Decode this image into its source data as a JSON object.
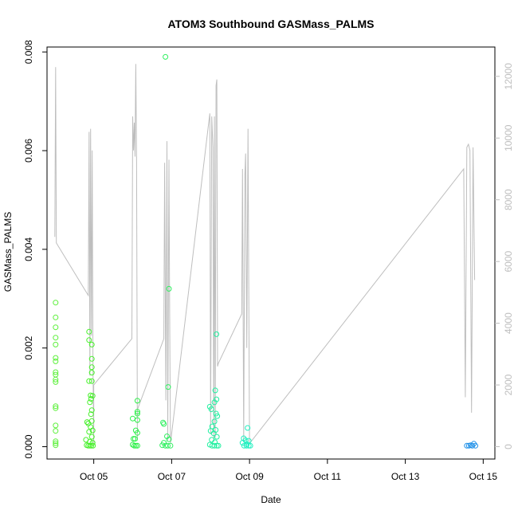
{
  "chart_data": {
    "type": "scatter",
    "title": "ATOM3 Southbound GASMass_PALMS",
    "xlabel": "Date",
    "ylabel": "GASMass_PALMS",
    "x_tick_labels": [
      "Oct 05",
      "Oct 07",
      "Oct 09",
      "Oct 11",
      "Oct 13",
      "Oct 15"
    ],
    "x_tick_days": [
      5,
      7,
      9,
      11,
      13,
      15
    ],
    "xlim_days": [
      3.8,
      15.3
    ],
    "y_left": {
      "ylim": [
        -0.00025,
        0.0081
      ],
      "ticks": [
        0.0,
        0.002,
        0.004,
        0.006,
        0.008
      ],
      "tick_labels": [
        "0.000",
        "0.002",
        "0.004",
        "0.006",
        "0.008"
      ]
    },
    "y_right": {
      "ylim": [
        -400,
        12950
      ],
      "ticks": [
        0,
        2000,
        4000,
        6000,
        8000,
        10000,
        12000
      ],
      "tick_labels": [
        "0",
        "2000",
        "4000",
        "6000",
        "8000",
        "10000",
        "12000"
      ],
      "color": "#bebebe"
    },
    "series": [
      {
        "kind": "points",
        "axis": "left",
        "marker": "open-circle",
        "color_note": "colored by date, green to blue",
        "points": [
          {
            "x": 4.02,
            "y": 0.00292,
            "c": "#5cf03a"
          },
          {
            "x": 4.02,
            "y": 0.00262,
            "c": "#5cf03a"
          },
          {
            "x": 4.02,
            "y": 0.00242,
            "c": "#5cf03a"
          },
          {
            "x": 4.02,
            "y": 0.00221,
            "c": "#5cf03a"
          },
          {
            "x": 4.02,
            "y": 0.00207,
            "c": "#5cf03a"
          },
          {
            "x": 4.02,
            "y": 0.0018,
            "c": "#5cf03a"
          },
          {
            "x": 4.02,
            "y": 0.00173,
            "c": "#5cf03a"
          },
          {
            "x": 4.02,
            "y": 0.00151,
            "c": "#5cf03a"
          },
          {
            "x": 4.02,
            "y": 0.00146,
            "c": "#5cf03a"
          },
          {
            "x": 4.02,
            "y": 0.00136,
            "c": "#5cf03a"
          },
          {
            "x": 4.02,
            "y": 0.00131,
            "c": "#5cf03a"
          },
          {
            "x": 4.02,
            "y": 0.00082,
            "c": "#5cf03a"
          },
          {
            "x": 4.02,
            "y": 0.00078,
            "c": "#5cf03a"
          },
          {
            "x": 4.02,
            "y": 0.00043,
            "c": "#5cf03a"
          },
          {
            "x": 4.02,
            "y": 0.00032,
            "c": "#5cf03a"
          },
          {
            "x": 4.02,
            "y": 0.00011,
            "c": "#5cf03a"
          },
          {
            "x": 4.02,
            "y": 7e-05,
            "c": "#5cf03a"
          },
          {
            "x": 4.02,
            "y": 3e-05,
            "c": "#5cf03a"
          },
          {
            "x": 4.88,
            "y": 0.00233,
            "c": "#46f02a"
          },
          {
            "x": 4.88,
            "y": 0.00216,
            "c": "#46f02a"
          },
          {
            "x": 4.95,
            "y": 0.00207,
            "c": "#46f02a"
          },
          {
            "x": 4.95,
            "y": 0.00178,
            "c": "#46f02a"
          },
          {
            "x": 4.95,
            "y": 0.00161,
            "c": "#46f02a"
          },
          {
            "x": 4.95,
            "y": 0.0015,
            "c": "#46f02a"
          },
          {
            "x": 4.88,
            "y": 0.00133,
            "c": "#46f02a"
          },
          {
            "x": 4.95,
            "y": 0.00133,
            "c": "#46f02a"
          },
          {
            "x": 4.92,
            "y": 0.00104,
            "c": "#46f02a"
          },
          {
            "x": 4.97,
            "y": 0.00103,
            "c": "#46f02a"
          },
          {
            "x": 4.93,
            "y": 0.00097,
            "c": "#46f02a"
          },
          {
            "x": 4.9,
            "y": 0.0009,
            "c": "#46f02a"
          },
          {
            "x": 4.95,
            "y": 0.00074,
            "c": "#46f02a"
          },
          {
            "x": 4.93,
            "y": 0.00066,
            "c": "#46f02a"
          },
          {
            "x": 4.95,
            "y": 0.00052,
            "c": "#46f02a"
          },
          {
            "x": 4.83,
            "y": 0.0005,
            "c": "#46f02a"
          },
          {
            "x": 4.86,
            "y": 0.00047,
            "c": "#46f02a"
          },
          {
            "x": 4.92,
            "y": 0.0004,
            "c": "#46f02a"
          },
          {
            "x": 4.97,
            "y": 0.00033,
            "c": "#46f02a"
          },
          {
            "x": 4.88,
            "y": 0.0003,
            "c": "#46f02a"
          },
          {
            "x": 4.95,
            "y": 0.0002,
            "c": "#46f02a"
          },
          {
            "x": 4.8,
            "y": 0.00014,
            "c": "#46f02a"
          },
          {
            "x": 4.9,
            "y": 0.0001,
            "c": "#46f02a"
          },
          {
            "x": 4.97,
            "y": 8e-05,
            "c": "#46f02a"
          },
          {
            "x": 4.82,
            "y": 3e-05,
            "c": "#46f02a"
          },
          {
            "x": 4.86,
            "y": 2e-05,
            "c": "#46f02a"
          },
          {
            "x": 4.9,
            "y": 2e-05,
            "c": "#46f02a"
          },
          {
            "x": 4.94,
            "y": 2e-05,
            "c": "#46f02a"
          },
          {
            "x": 4.98,
            "y": 2e-05,
            "c": "#46f02a"
          },
          {
            "x": 6.12,
            "y": 0.00093,
            "c": "#2cf048"
          },
          {
            "x": 6.12,
            "y": 0.00071,
            "c": "#2cf048"
          },
          {
            "x": 6.12,
            "y": 0.00067,
            "c": "#2cf048"
          },
          {
            "x": 6.0,
            "y": 0.00057,
            "c": "#2cf048"
          },
          {
            "x": 6.12,
            "y": 0.00054,
            "c": "#2cf048"
          },
          {
            "x": 6.08,
            "y": 0.00033,
            "c": "#2cf048"
          },
          {
            "x": 6.12,
            "y": 0.00028,
            "c": "#2cf048"
          },
          {
            "x": 6.02,
            "y": 0.00016,
            "c": "#2cf048"
          },
          {
            "x": 6.06,
            "y": 0.00016,
            "c": "#2cf048"
          },
          {
            "x": 6.0,
            "y": 4e-05,
            "c": "#2cf048"
          },
          {
            "x": 6.04,
            "y": 2e-05,
            "c": "#2cf048"
          },
          {
            "x": 6.08,
            "y": 2e-05,
            "c": "#2cf048"
          },
          {
            "x": 6.12,
            "y": 2e-05,
            "c": "#2cf048"
          },
          {
            "x": 6.84,
            "y": 0.0079,
            "c": "#30f060"
          },
          {
            "x": 6.93,
            "y": 0.0032,
            "c": "#30f060"
          },
          {
            "x": 6.91,
            "y": 0.00121,
            "c": "#30f060"
          },
          {
            "x": 6.78,
            "y": 0.00049,
            "c": "#30f060"
          },
          {
            "x": 6.8,
            "y": 0.00046,
            "c": "#30f060"
          },
          {
            "x": 6.88,
            "y": 0.00021,
            "c": "#30f060"
          },
          {
            "x": 6.93,
            "y": 0.00015,
            "c": "#30f060"
          },
          {
            "x": 6.8,
            "y": 8e-05,
            "c": "#30f060"
          },
          {
            "x": 6.76,
            "y": 3e-05,
            "c": "#30f060"
          },
          {
            "x": 6.84,
            "y": 2e-05,
            "c": "#30f060"
          },
          {
            "x": 6.9,
            "y": 2e-05,
            "c": "#30f060"
          },
          {
            "x": 6.97,
            "y": 2e-05,
            "c": "#30f060"
          },
          {
            "x": 8.15,
            "y": 0.00228,
            "c": "#20f0a0"
          },
          {
            "x": 8.12,
            "y": 0.00114,
            "c": "#20f0a0"
          },
          {
            "x": 8.15,
            "y": 0.00096,
            "c": "#20f0a0"
          },
          {
            "x": 8.1,
            "y": 0.0009,
            "c": "#20f0a0"
          },
          {
            "x": 7.98,
            "y": 0.00081,
            "c": "#20f0a0"
          },
          {
            "x": 8.02,
            "y": 0.00076,
            "c": "#20f0a0"
          },
          {
            "x": 8.14,
            "y": 0.00067,
            "c": "#20f0a0"
          },
          {
            "x": 8.17,
            "y": 0.00062,
            "c": "#20f0a0"
          },
          {
            "x": 8.1,
            "y": 0.00051,
            "c": "#20f0a0"
          },
          {
            "x": 8.04,
            "y": 0.00041,
            "c": "#20f0a0"
          },
          {
            "x": 8.13,
            "y": 0.00034,
            "c": "#20f0a0"
          },
          {
            "x": 8.0,
            "y": 0.00032,
            "c": "#20f0a0"
          },
          {
            "x": 8.08,
            "y": 0.00027,
            "c": "#20f0a0"
          },
          {
            "x": 8.16,
            "y": 0.0002,
            "c": "#20f0a0"
          },
          {
            "x": 8.03,
            "y": 0.00014,
            "c": "#20f0a0"
          },
          {
            "x": 8.11,
            "y": 9e-05,
            "c": "#20f0a0"
          },
          {
            "x": 7.98,
            "y": 4e-05,
            "c": "#20f0a0"
          },
          {
            "x": 8.04,
            "y": 2e-05,
            "c": "#20f0a0"
          },
          {
            "x": 8.1,
            "y": 2e-05,
            "c": "#20f0a0"
          },
          {
            "x": 8.16,
            "y": 2e-05,
            "c": "#20f0a0"
          },
          {
            "x": 8.2,
            "y": 2e-05,
            "c": "#20f0a0"
          },
          {
            "x": 8.95,
            "y": 0.00038,
            "c": "#20f0c0"
          },
          {
            "x": 8.85,
            "y": 0.00017,
            "c": "#20f0c0"
          },
          {
            "x": 8.9,
            "y": 0.00013,
            "c": "#20f0c0"
          },
          {
            "x": 8.98,
            "y": 0.00012,
            "c": "#20f0c0"
          },
          {
            "x": 8.82,
            "y": 8e-05,
            "c": "#20f0c0"
          },
          {
            "x": 8.93,
            "y": 5e-05,
            "c": "#20f0c0"
          },
          {
            "x": 8.86,
            "y": 2e-05,
            "c": "#20f0c0"
          },
          {
            "x": 8.92,
            "y": 2e-05,
            "c": "#20f0c0"
          },
          {
            "x": 8.98,
            "y": 2e-05,
            "c": "#20f0c0"
          },
          {
            "x": 9.02,
            "y": 2e-05,
            "c": "#20f0c0"
          },
          {
            "x": 14.58,
            "y": 2e-05,
            "c": "#1e90e8"
          },
          {
            "x": 14.63,
            "y": 2e-05,
            "c": "#1e90e8"
          },
          {
            "x": 14.68,
            "y": 3e-05,
            "c": "#1e90e8"
          },
          {
            "x": 14.72,
            "y": 2e-05,
            "c": "#1e90e8"
          },
          {
            "x": 14.76,
            "y": 6e-05,
            "c": "#1e90e8"
          },
          {
            "x": 14.8,
            "y": 2e-05,
            "c": "#1e90e8"
          }
        ]
      },
      {
        "kind": "line",
        "axis": "right",
        "color": "#bebebe",
        "points": [
          {
            "x": 4.0,
            "y": 6800
          },
          {
            "x": 4.02,
            "y": 12300
          },
          {
            "x": 4.04,
            "y": 6600
          },
          {
            "x": 4.86,
            "y": 4900
          },
          {
            "x": 4.88,
            "y": 10200
          },
          {
            "x": 4.9,
            "y": 2300
          },
          {
            "x": 4.92,
            "y": 10300
          },
          {
            "x": 4.94,
            "y": 3600
          },
          {
            "x": 4.96,
            "y": 9600
          },
          {
            "x": 4.98,
            "y": 2500
          },
          {
            "x": 5.0,
            "y": 100
          },
          {
            "x": 5.0,
            "y": 2000
          },
          {
            "x": 5.98,
            "y": 3500
          },
          {
            "x": 6.0,
            "y": 10700
          },
          {
            "x": 6.02,
            "y": 9600
          },
          {
            "x": 6.04,
            "y": 10500
          },
          {
            "x": 6.06,
            "y": 9400
          },
          {
            "x": 6.08,
            "y": 12400
          },
          {
            "x": 6.1,
            "y": 9200
          },
          {
            "x": 6.12,
            "y": 200
          },
          {
            "x": 6.12,
            "y": 1200
          },
          {
            "x": 6.8,
            "y": 3500
          },
          {
            "x": 6.82,
            "y": 9200
          },
          {
            "x": 6.85,
            "y": 1500
          },
          {
            "x": 6.88,
            "y": 9900
          },
          {
            "x": 6.9,
            "y": 200
          },
          {
            "x": 6.93,
            "y": 9300
          },
          {
            "x": 6.95,
            "y": 4300
          },
          {
            "x": 6.97,
            "y": 100
          },
          {
            "x": 7.98,
            "y": 10800
          },
          {
            "x": 8.0,
            "y": 400
          },
          {
            "x": 8.03,
            "y": 10700
          },
          {
            "x": 8.06,
            "y": 9700
          },
          {
            "x": 8.08,
            "y": 200
          },
          {
            "x": 8.1,
            "y": 10700
          },
          {
            "x": 8.12,
            "y": 300
          },
          {
            "x": 8.14,
            "y": 11700
          },
          {
            "x": 8.16,
            "y": 11900
          },
          {
            "x": 8.18,
            "y": 2600
          },
          {
            "x": 8.2,
            "y": 2700
          },
          {
            "x": 8.8,
            "y": 4300
          },
          {
            "x": 8.82,
            "y": 9000
          },
          {
            "x": 8.85,
            "y": 200
          },
          {
            "x": 8.88,
            "y": 8800
          },
          {
            "x": 8.9,
            "y": 9500
          },
          {
            "x": 8.93,
            "y": 3200
          },
          {
            "x": 8.96,
            "y": 10300
          },
          {
            "x": 9.0,
            "y": 100
          },
          {
            "x": 14.5,
            "y": 9000
          },
          {
            "x": 14.54,
            "y": 1600
          },
          {
            "x": 14.58,
            "y": 9700
          },
          {
            "x": 14.62,
            "y": 9800
          },
          {
            "x": 14.66,
            "y": 9600
          },
          {
            "x": 14.7,
            "y": 1100
          },
          {
            "x": 14.74,
            "y": 9700
          },
          {
            "x": 14.78,
            "y": 5400
          }
        ]
      }
    ],
    "grid": false,
    "background": "#ffffff"
  }
}
